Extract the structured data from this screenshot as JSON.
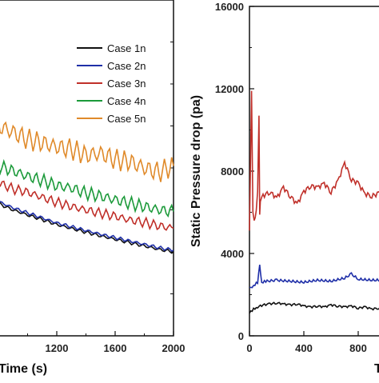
{
  "chart_data": [
    {
      "type": "line",
      "panel": "left",
      "xlabel": "Time (s)",
      "ylabel": "",
      "x_ticks": [
        "1200",
        "1600",
        "2000"
      ],
      "xlim": [
        800,
        2000
      ],
      "ylim": [
        0,
        8000
      ],
      "grid": false,
      "legend_position": "top-right",
      "series": [
        {
          "name": "Case 1n",
          "color": "#111111",
          "x": [
            800,
            900,
            1000,
            1100,
            1200,
            1300,
            1400,
            1500,
            1600,
            1700,
            1800,
            1900,
            2000
          ],
          "y": [
            3150,
            3000,
            2880,
            2770,
            2650,
            2560,
            2470,
            2380,
            2300,
            2220,
            2140,
            2060,
            2000
          ]
        },
        {
          "name": "Case 2n",
          "color": "#1f2fa8",
          "x": [
            800,
            900,
            1000,
            1100,
            1200,
            1300,
            1400,
            1500,
            1600,
            1700,
            1800,
            1900,
            2000
          ],
          "y": [
            3200,
            3050,
            2930,
            2810,
            2690,
            2600,
            2510,
            2420,
            2340,
            2260,
            2180,
            2100,
            2040
          ]
        },
        {
          "name": "Case 3n",
          "color": "#c0302a",
          "x": [
            800,
            900,
            1000,
            1100,
            1200,
            1300,
            1400,
            1500,
            1600,
            1700,
            1800,
            1900,
            2000
          ],
          "y": [
            3650,
            3500,
            3420,
            3300,
            3180,
            3080,
            3000,
            2920,
            2850,
            2760,
            2700,
            2620,
            2560
          ]
        },
        {
          "name": "Case 4n",
          "color": "#1c9a3a",
          "x": [
            800,
            900,
            1000,
            1100,
            1200,
            1300,
            1400,
            1500,
            1600,
            1700,
            1800,
            1900,
            2000
          ],
          "y": [
            4050,
            3930,
            3800,
            3700,
            3580,
            3520,
            3400,
            3330,
            3240,
            3160,
            3080,
            3000,
            2960
          ]
        },
        {
          "name": "Case 5n",
          "color": "#e08a2a",
          "x": [
            800,
            900,
            1000,
            1100,
            1200,
            1300,
            1400,
            1500,
            1600,
            1700,
            1800,
            1900,
            2000
          ],
          "y": [
            5000,
            4850,
            4680,
            4600,
            4500,
            4450,
            4300,
            4350,
            4200,
            4150,
            4000,
            3900,
            4050
          ]
        }
      ]
    },
    {
      "type": "line",
      "panel": "right",
      "xlabel": "T",
      "ylabel": "Static Pressure drop (pa)",
      "y_ticks": [
        "0",
        "4000",
        "8000",
        "12000",
        "16000"
      ],
      "x_ticks": [
        "0",
        "400",
        "800"
      ],
      "ylim": [
        0,
        16000
      ],
      "xlim": [
        0,
        1000
      ],
      "grid": false,
      "series": [
        {
          "name": "black",
          "color": "#111111",
          "x": [
            0,
            30,
            60,
            100,
            150,
            200,
            250,
            300,
            350,
            400,
            450,
            500,
            550,
            600,
            650,
            700,
            750,
            800,
            850,
            900,
            950,
            1000
          ],
          "y": [
            1100,
            1300,
            1400,
            1500,
            1550,
            1600,
            1550,
            1500,
            1550,
            1450,
            1400,
            1450,
            1400,
            1500,
            1450,
            1400,
            1450,
            1350,
            1400,
            1300,
            1350,
            1300
          ]
        },
        {
          "name": "blue",
          "color": "#1f2fa8",
          "x": [
            0,
            30,
            60,
            75,
            90,
            120,
            200,
            300,
            400,
            500,
            600,
            700,
            750,
            800,
            900,
            1000
          ],
          "y": [
            2300,
            2450,
            2600,
            3400,
            2600,
            2650,
            2700,
            2650,
            2600,
            2700,
            2650,
            2800,
            3000,
            2750,
            2700,
            2700
          ]
        },
        {
          "name": "red",
          "color": "#c0302a",
          "x": [
            0,
            15,
            25,
            35,
            50,
            60,
            70,
            75,
            80,
            100,
            150,
            200,
            250,
            300,
            350,
            400,
            450,
            500,
            550,
            600,
            650,
            700,
            750,
            800,
            850,
            900,
            950,
            1000
          ],
          "y": [
            5000,
            12000,
            6000,
            5500,
            6200,
            7000,
            10600,
            6000,
            6500,
            6800,
            7000,
            6700,
            7200,
            6800,
            6400,
            7000,
            7300,
            7200,
            7400,
            7000,
            7500,
            8400,
            7600,
            7400,
            6900,
            6800,
            6900,
            7000
          ]
        }
      ]
    }
  ]
}
